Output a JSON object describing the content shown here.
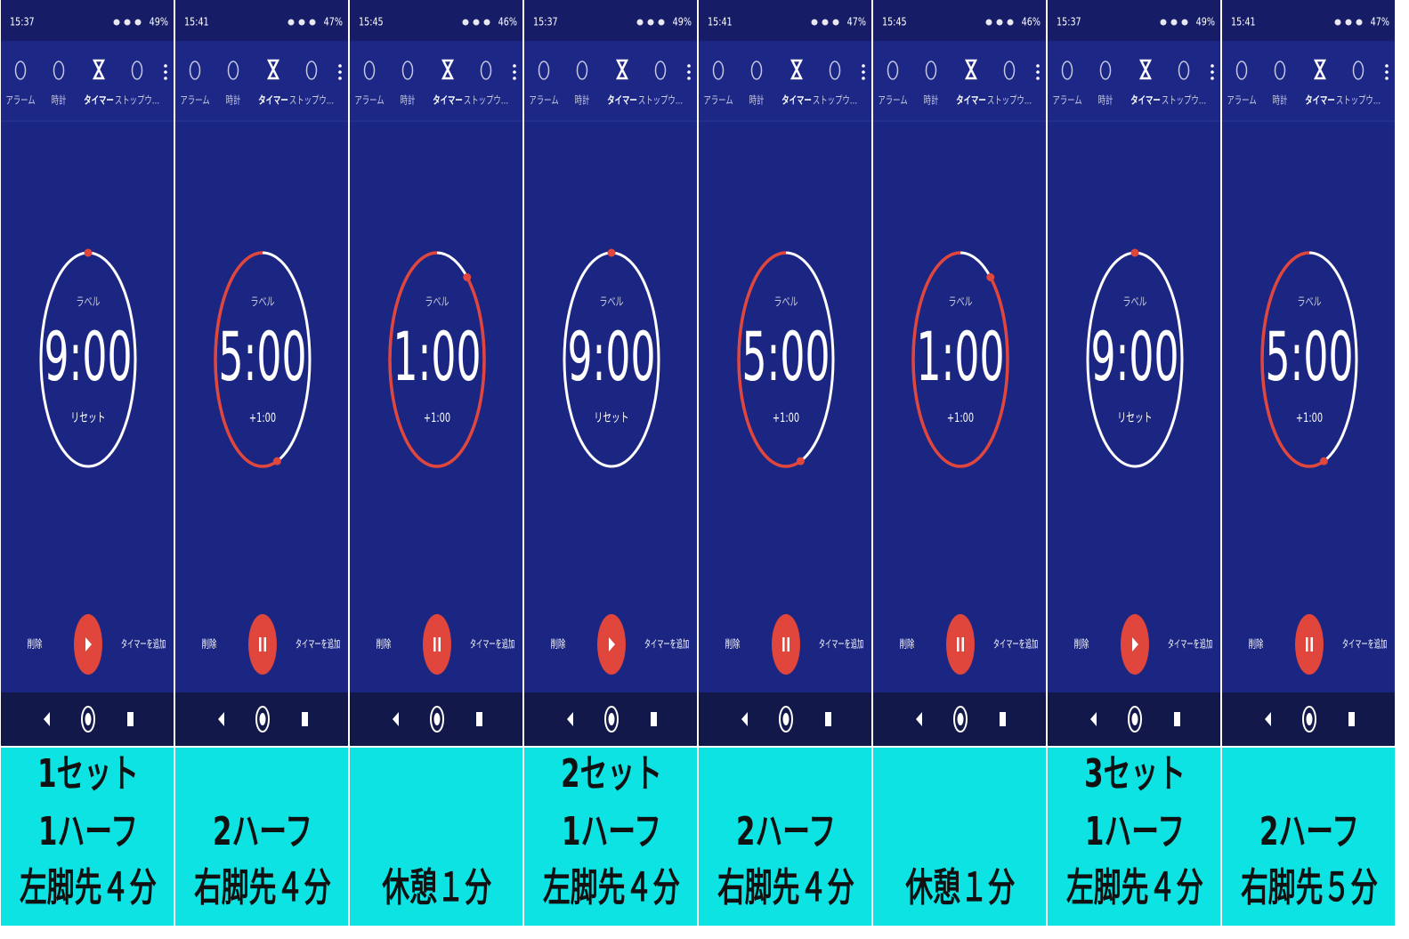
{
  "tabs": [
    "アラーム",
    "時計",
    "タイマー",
    "ストップウ…"
  ],
  "timer_label": "ラベル",
  "delete": "削除",
  "add_timer": "タイマーを追加",
  "panels": [
    {
      "status_time": "15:37",
      "battery": "49%",
      "time": "9:00",
      "action": "リセット",
      "caption": [
        "1セット",
        "1ハーフ",
        "左脚先４分"
      ]
    },
    {
      "status_time": "15:41",
      "battery": "47%",
      "time": "5:00",
      "action": "+1:00",
      "caption": [
        "2ハーフ",
        "右脚先４分"
      ]
    },
    {
      "status_time": "15:45",
      "battery": "46%",
      "time": "1:00",
      "action": "+1:00",
      "caption": [
        "休憩１分"
      ]
    },
    {
      "status_time": "15:37",
      "battery": "49%",
      "time": "9:00",
      "action": "リセット",
      "caption": [
        "2セット",
        "1ハーフ",
        "左脚先４分"
      ]
    },
    {
      "status_time": "15:41",
      "battery": "47%",
      "time": "5:00",
      "action": "+1:00",
      "caption": [
        "2ハーフ",
        "右脚先４分"
      ]
    },
    {
      "status_time": "15:45",
      "battery": "46%",
      "time": "1:00",
      "action": "+1:00",
      "caption": [
        "休憩１分"
      ]
    },
    {
      "status_time": "15:37",
      "battery": "49%",
      "time": "9:00",
      "action": "リセット",
      "caption": [
        "3セット",
        "1ハーフ",
        "左脚先４分"
      ]
    },
    {
      "status_time": "15:41",
      "battery": "47%",
      "time": "5:00",
      "action": "+1:00",
      "caption": [
        "2ハーフ",
        "右脚先５分"
      ]
    }
  ]
}
